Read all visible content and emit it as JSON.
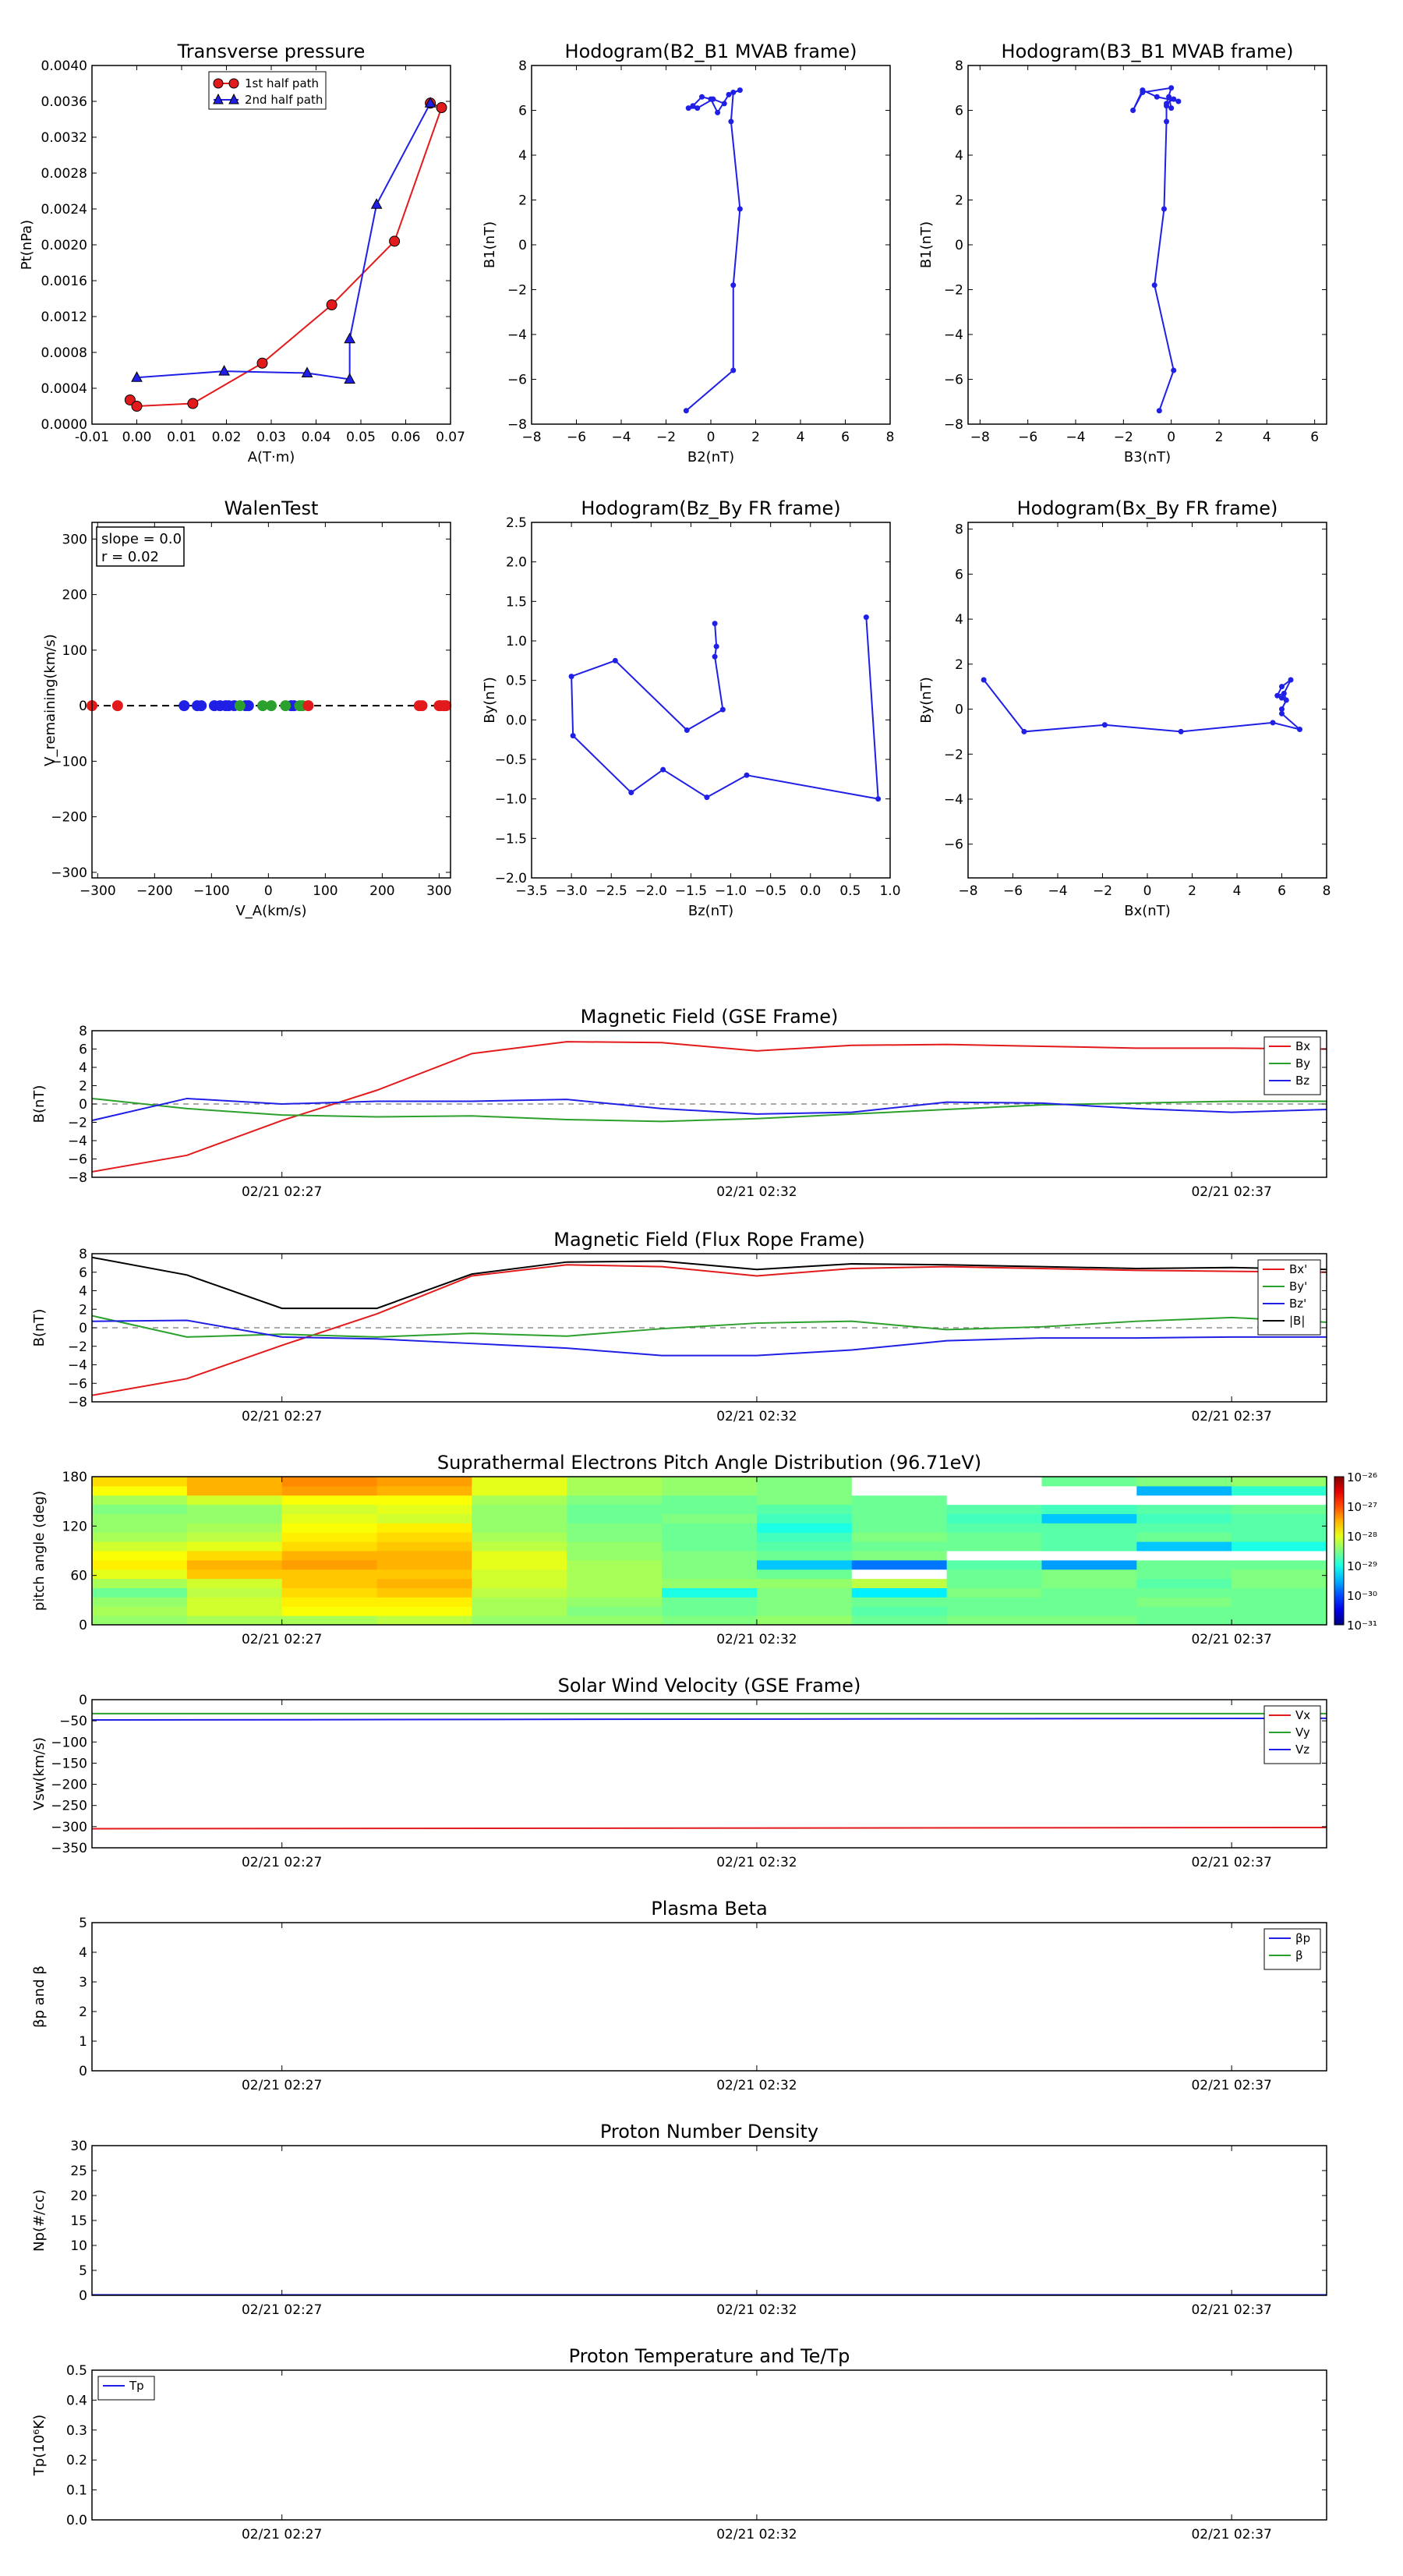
{
  "scatter_panels": [
    {
      "id": "transverse-pressure",
      "title": "Transverse pressure",
      "xlabel": "A(T·m)",
      "ylabel": "Pt(nPa)",
      "xlim": [
        -0.01,
        0.07
      ],
      "ylim": [
        0,
        0.004
      ],
      "xticks": [
        "-0.01",
        "0.00",
        "0.01",
        "0.02",
        "0.03",
        "0.04",
        "0.05",
        "0.06",
        "0.07"
      ],
      "yticks": [
        "0.0000",
        "0.0004",
        "0.0008",
        "0.0012",
        "0.0016",
        "0.0020",
        "0.0024",
        "0.0028",
        "0.0032",
        "0.0036",
        "0.0040"
      ],
      "legend": [
        "1st half path",
        "2nd half path"
      ]
    },
    {
      "id": "hodogram-b2-b1",
      "title": "Hodogram(B2_B1 MVAB frame)",
      "xlabel": "B2(nT)",
      "ylabel": "B1(nT)",
      "xlim": [
        -8,
        8
      ],
      "ylim": [
        -8,
        8
      ],
      "xticks": [
        "−8",
        "−6",
        "−4",
        "−2",
        "0",
        "2",
        "4",
        "6",
        "8"
      ],
      "yticks": [
        "−8",
        "−6",
        "−4",
        "−2",
        "0",
        "2",
        "4",
        "6",
        "8"
      ]
    },
    {
      "id": "hodogram-b3-b1",
      "title": "Hodogram(B3_B1 MVAB frame)",
      "xlabel": "B3(nT)",
      "ylabel": "B1(nT)",
      "xlim": [
        -8.5,
        6.5
      ],
      "ylim": [
        -8,
        8
      ],
      "xticks": [
        "−8",
        "−6",
        "−4",
        "−2",
        "0",
        "2",
        "4",
        "6"
      ],
      "yticks": [
        "−8",
        "−6",
        "−4",
        "−2",
        "0",
        "2",
        "4",
        "6",
        "8"
      ]
    },
    {
      "id": "walen-test",
      "title": "WalenTest",
      "xlabel": "V_A(km/s)",
      "ylabel": "V_remaining(km/s)",
      "xlim": [
        -310,
        320
      ],
      "ylim": [
        -310,
        330
      ],
      "xticks": [
        "−300",
        "−200",
        "−100",
        "0",
        "100",
        "200",
        "300"
      ],
      "yticks": [
        "−300",
        "−200",
        "−100",
        "0",
        "100",
        "200",
        "300"
      ],
      "annotation": [
        "slope = 0.0",
        "r = 0.02"
      ]
    },
    {
      "id": "hodogram-bz-by",
      "title": "Hodogram(Bz_By FR frame)",
      "xlabel": "Bz(nT)",
      "ylabel": "By(nT)",
      "xlim": [
        -3.5,
        1.0
      ],
      "ylim": [
        -2.0,
        2.5
      ],
      "xticks": [
        "−3.5",
        "−3.0",
        "−2.5",
        "−2.0",
        "−1.5",
        "−1.0",
        "−0.5",
        "0.0",
        "0.5",
        "1.0"
      ],
      "yticks": [
        "−2.0",
        "−1.5",
        "−1.0",
        "−0.5",
        "0.0",
        "0.5",
        "1.0",
        "1.5",
        "2.0",
        "2.5"
      ]
    },
    {
      "id": "hodogram-bx-by",
      "title": "Hodogram(Bx_By FR frame)",
      "xlabel": "Bx(nT)",
      "ylabel": "By(nT)",
      "xlim": [
        -8,
        8
      ],
      "ylim": [
        -7.5,
        8.3
      ],
      "xticks": [
        "−8",
        "−6",
        "−4",
        "−2",
        "0",
        "2",
        "4",
        "6",
        "8"
      ],
      "yticks": [
        "−6",
        "−4",
        "−2",
        "0",
        "2",
        "4",
        "6",
        "8"
      ]
    }
  ],
  "time_panels": [
    {
      "id": "mag-gse",
      "title": "Magnetic Field (GSE Frame)",
      "ylabel": "B(nT)",
      "ylim": [
        -8,
        8
      ],
      "yticks": [
        "−8",
        "−6",
        "−4",
        "−2",
        "0",
        "2",
        "4",
        "6",
        "8"
      ],
      "legend": [
        "Bx",
        "By",
        "Bz"
      ]
    },
    {
      "id": "mag-fr",
      "title": "Magnetic Field (Flux Rope Frame)",
      "ylabel": "B(nT)",
      "ylim": [
        -8,
        8
      ],
      "yticks": [
        "−8",
        "−6",
        "−4",
        "−2",
        "0",
        "2",
        "4",
        "6",
        "8"
      ],
      "legend": [
        "Bx'",
        "By'",
        "Bz'",
        "|B|"
      ]
    },
    {
      "id": "pad",
      "title": "Suprathermal Electrons Pitch Angle Distribution (96.71eV)",
      "ylabel": "pitch angle (deg)",
      "ylim": [
        0,
        180
      ],
      "yticks": [
        "0",
        "60",
        "120",
        "180"
      ],
      "colorbar_ticks": [
        "10⁻²⁶",
        "10⁻²⁷",
        "10⁻²⁸",
        "10⁻²⁹",
        "10⁻³⁰",
        "10⁻³¹"
      ]
    },
    {
      "id": "vsw",
      "title": "Solar Wind Velocity (GSE Frame)",
      "ylabel": "Vsw(km/s)",
      "ylim": [
        -350,
        0
      ],
      "yticks": [
        "−350",
        "−300",
        "−250",
        "−200",
        "−150",
        "−100",
        "−50",
        "0"
      ],
      "legend": [
        "Vx",
        "Vy",
        "Vz"
      ]
    },
    {
      "id": "beta",
      "title": "Plasma Beta",
      "ylabel": "βp and β",
      "ylim": [
        0,
        5
      ],
      "yticks": [
        "0",
        "1",
        "2",
        "3",
        "4",
        "5"
      ],
      "legend": [
        "βp",
        "β"
      ]
    },
    {
      "id": "np",
      "title": "Proton Number Density",
      "ylabel": "Np(#/cc)",
      "ylim": [
        0,
        30
      ],
      "yticks": [
        "0",
        "5",
        "10",
        "15",
        "20",
        "25",
        "30"
      ]
    },
    {
      "id": "tp",
      "title": "Proton Temperature and Te/Tp",
      "ylabel": "Tp(10⁶K)",
      "ylim": [
        0,
        0.5
      ],
      "yticks": [
        "0.0",
        "0.1",
        "0.2",
        "0.3",
        "0.4",
        "0.5"
      ],
      "legend": [
        "Tp"
      ]
    }
  ],
  "time_axis": {
    "xlim": [
      0,
      13
    ],
    "ticks": [
      {
        "t": 2,
        "label": "02/21 02:27"
      },
      {
        "t": 7,
        "label": "02/21 02:32"
      },
      {
        "t": 12,
        "label": "02/21 02:37"
      }
    ]
  },
  "colors": {
    "red": "#e31a1c",
    "green": "#2ca02c",
    "blue": "#1f1fe6",
    "black": "#000000",
    "gray": "#777777"
  },
  "chart_data": [
    {
      "type": "line",
      "panel": "transverse-pressure",
      "series": [
        {
          "name": "1st half path",
          "x": [
            -0.0015,
            0.0,
            0.0125,
            0.028,
            0.0435,
            0.0575,
            0.068,
            0.0655
          ],
          "y": [
            0.00027,
            0.0002,
            0.00023,
            0.00068,
            0.00133,
            0.00204,
            0.00353,
            0.00358
          ]
        },
        {
          "name": "2nd half path",
          "x": [
            0.0655,
            0.0535,
            0.0475,
            0.0475,
            0.038,
            0.0195,
            0.0
          ],
          "y": [
            0.00358,
            0.00245,
            0.00095,
            0.0005,
            0.00057,
            0.00059,
            0.00052
          ]
        }
      ]
    },
    {
      "type": "line",
      "panel": "hodogram-b2-b1",
      "series": [
        {
          "x": [
            -1.1,
            1.0,
            1.0,
            1.3,
            0.9,
            1.0,
            1.3,
            0.8,
            0.3,
            0.0,
            -0.4,
            -0.8,
            -1.0,
            -0.6,
            0.1,
            0.6
          ],
          "y": [
            -7.4,
            -5.6,
            -1.8,
            1.6,
            5.5,
            6.8,
            6.9,
            6.7,
            5.9,
            6.5,
            6.6,
            6.2,
            6.1,
            6.1,
            6.5,
            6.3
          ]
        }
      ]
    },
    {
      "type": "line",
      "panel": "hodogram-b3-b1",
      "series": [
        {
          "x": [
            -0.5,
            0.1,
            -0.7,
            -0.3,
            -0.2,
            -0.2,
            0.0,
            -0.1,
            0.3,
            -0.6,
            -1.2,
            -1.6,
            -1.2,
            0.0,
            -0.2,
            0.1
          ],
          "y": [
            -7.4,
            -5.6,
            -1.8,
            1.6,
            5.5,
            6.2,
            6.1,
            6.6,
            6.4,
            6.6,
            6.9,
            6.0,
            6.8,
            7.0,
            6.3,
            6.5
          ]
        }
      ]
    },
    {
      "type": "scatter",
      "panel": "walen-test",
      "fit_line": {
        "x": [
          -310,
          320
        ],
        "y": [
          0,
          0
        ]
      },
      "series": [
        {
          "name": "red",
          "x": [
            -310,
            -265,
            265,
            270,
            300,
            303,
            308,
            312
          ],
          "y": [
            0,
            0,
            0,
            0,
            0,
            0,
            0,
            0
          ]
        },
        {
          "name": "blue",
          "x": [
            -148,
            -125,
            -118,
            -95,
            -85,
            -75,
            -70,
            -60,
            -40,
            -35,
            40,
            45
          ],
          "y": [
            0,
            0,
            0,
            0,
            0,
            0,
            0,
            0,
            0,
            0,
            0,
            0
          ]
        },
        {
          "name": "green",
          "x": [
            -50,
            -10,
            5,
            30,
            55,
            60
          ],
          "y": [
            0,
            0,
            0,
            0,
            0,
            0
          ]
        },
        {
          "name": "red2",
          "x": [
            70
          ],
          "y": [
            0
          ]
        }
      ]
    },
    {
      "type": "line",
      "panel": "hodogram-bz-by",
      "series": [
        {
          "x": [
            -1.2,
            -1.18,
            -1.2,
            -1.1,
            -1.55,
            -2.45,
            -3.0,
            -2.98,
            -2.25,
            -1.85,
            -1.3,
            -0.8,
            0.85,
            0.7
          ],
          "y": [
            1.22,
            0.93,
            0.8,
            0.13,
            -0.13,
            0.75,
            0.55,
            -0.2,
            -0.92,
            -0.63,
            -0.98,
            -0.7,
            -1.0,
            1.3
          ]
        }
      ]
    },
    {
      "type": "line",
      "panel": "hodogram-bx-by",
      "series": [
        {
          "x": [
            -7.3,
            -5.5,
            -1.9,
            1.5,
            5.6,
            6.8,
            6.0,
            6.0,
            6.2,
            6.1,
            5.8,
            6.0,
            6.4,
            6.0
          ],
          "y": [
            1.3,
            -1.0,
            -0.7,
            -1.0,
            -0.6,
            -0.9,
            -0.2,
            0.0,
            0.4,
            0.7,
            0.6,
            1.0,
            1.3,
            0.5
          ]
        }
      ]
    },
    {
      "type": "line",
      "panel": "mag-gse",
      "x": [
        0,
        1,
        2,
        3,
        4,
        5,
        6,
        7,
        8,
        9,
        10,
        11,
        12,
        13
      ],
      "series": [
        {
          "name": "Bx",
          "values": [
            -7.4,
            -5.6,
            -1.8,
            1.5,
            5.5,
            6.8,
            6.7,
            5.8,
            6.4,
            6.5,
            6.3,
            6.1,
            6.1,
            6.0
          ]
        },
        {
          "name": "By",
          "values": [
            0.6,
            -0.5,
            -1.2,
            -1.4,
            -1.3,
            -1.7,
            -1.9,
            -1.6,
            -1.1,
            -0.6,
            -0.1,
            0.1,
            0.3,
            0.3
          ]
        },
        {
          "name": "Bz",
          "values": [
            -1.8,
            0.6,
            0.0,
            0.3,
            0.3,
            0.5,
            -0.5,
            -1.1,
            -0.9,
            0.2,
            0.1,
            -0.5,
            -0.9,
            -0.6
          ]
        }
      ],
      "reference_line": 0
    },
    {
      "type": "line",
      "panel": "mag-fr",
      "x": [
        0,
        1,
        2,
        3,
        4,
        5,
        6,
        7,
        8,
        9,
        10,
        11,
        12,
        13
      ],
      "series": [
        {
          "name": "Bx'",
          "values": [
            -7.3,
            -5.5,
            -1.9,
            1.5,
            5.6,
            6.8,
            6.6,
            5.6,
            6.4,
            6.6,
            6.4,
            6.2,
            6.1,
            6.0
          ]
        },
        {
          "name": "By'",
          "values": [
            1.3,
            -1.0,
            -0.7,
            -1.0,
            -0.6,
            -0.9,
            -0.1,
            0.5,
            0.7,
            -0.2,
            0.1,
            0.7,
            1.1,
            0.6
          ]
        },
        {
          "name": "Bz'",
          "values": [
            0.7,
            0.8,
            -1.0,
            -1.2,
            -1.7,
            -2.2,
            -3.0,
            -3.0,
            -2.4,
            -1.4,
            -1.1,
            -1.1,
            -1.0,
            -1.0
          ]
        },
        {
          "name": "|B|",
          "values": [
            7.6,
            5.7,
            2.1,
            2.1,
            5.8,
            7.1,
            7.2,
            6.3,
            6.9,
            6.8,
            6.6,
            6.4,
            6.5,
            6.3
          ]
        }
      ],
      "reference_line": 0
    },
    {
      "type": "heatmap",
      "panel": "pad",
      "columns": 13,
      "rows": 16,
      "log_values_description": "log10 of flux",
      "values": [
        [
          -28.4,
          -28.3,
          -28.3,
          -28.2,
          -28.4,
          -28.4,
          -28.5,
          -28.4,
          -28.6,
          -28.5,
          -28.5,
          -28.6,
          -28.6
        ],
        [
          -28.3,
          -28.1,
          -27.9,
          -27.9,
          -28.3,
          -28.5,
          -28.6,
          -28.5,
          -28.7,
          -28.6,
          -28.6,
          -28.6,
          -28.6
        ],
        [
          -28.4,
          -28.1,
          -27.8,
          -27.8,
          -28.3,
          -28.4,
          -28.6,
          -28.5,
          -28.6,
          -28.6,
          -28.6,
          -28.5,
          -28.6
        ],
        [
          -28.6,
          -28.2,
          -27.7,
          -27.6,
          -28.2,
          -28.3,
          -29.0,
          -28.5,
          -29.2,
          -28.5,
          -28.6,
          -28.6,
          -28.6
        ],
        [
          -28.3,
          -28.1,
          -27.6,
          -27.5,
          -28.1,
          -28.3,
          -28.4,
          -28.4,
          -28.2,
          -28.6,
          -28.5,
          -28.7,
          -28.5
        ],
        [
          -28.0,
          -27.6,
          -27.6,
          -27.6,
          -28.1,
          -28.3,
          -28.5,
          -28.6,
          -99,
          -28.6,
          -28.5,
          -28.6,
          -28.5
        ],
        [
          -27.8,
          -27.5,
          -27.4,
          -27.5,
          -28.0,
          -28.3,
          -28.5,
          -29.4,
          -29.8,
          -28.7,
          -29.6,
          -28.6,
          -28.6
        ],
        [
          -27.9,
          -27.7,
          -27.5,
          -27.5,
          -28.0,
          -28.4,
          -28.5,
          -28.6,
          -28.5,
          -99,
          -99,
          -99,
          -99
        ],
        [
          -28.1,
          -28.0,
          -27.7,
          -27.6,
          -28.2,
          -28.4,
          -28.6,
          -28.7,
          -28.6,
          -28.6,
          -28.7,
          -29.4,
          -29.0
        ],
        [
          -28.3,
          -28.2,
          -27.8,
          -27.7,
          -28.3,
          -28.5,
          -28.6,
          -28.8,
          -28.5,
          -28.6,
          -28.7,
          -28.6,
          -28.7
        ],
        [
          -28.4,
          -28.3,
          -27.9,
          -27.8,
          -28.4,
          -28.5,
          -28.6,
          -29.0,
          -28.6,
          -28.7,
          -28.7,
          -28.7,
          -28.7
        ],
        [
          -28.4,
          -28.4,
          -28.0,
          -28.1,
          -28.4,
          -28.6,
          -28.5,
          -28.8,
          -28.6,
          -28.8,
          -29.4,
          -28.8,
          -28.7
        ],
        [
          -28.5,
          -28.4,
          -28.1,
          -28.0,
          -28.4,
          -28.6,
          -28.6,
          -28.7,
          -28.6,
          -28.7,
          -28.8,
          -28.7,
          -28.6
        ],
        [
          -28.3,
          -28.1,
          -27.9,
          -27.9,
          -28.3,
          -28.5,
          -28.6,
          -28.5,
          -28.6,
          -99,
          -99,
          -99,
          -99
        ],
        [
          -27.9,
          -27.5,
          -27.4,
          -27.5,
          -28.0,
          -28.3,
          -28.4,
          -28.5,
          -99,
          -99,
          -99,
          -29.5,
          -28.9
        ],
        [
          -27.7,
          -27.5,
          -27.3,
          -27.4,
          -28.0,
          -28.3,
          -28.4,
          -28.5,
          -99,
          -99,
          -28.6,
          -28.5,
          -28.4
        ]
      ]
    },
    {
      "type": "line",
      "panel": "vsw",
      "x": [
        0,
        13
      ],
      "series": [
        {
          "name": "Vx",
          "values": [
            -305,
            -302
          ]
        },
        {
          "name": "Vy",
          "values": [
            -33,
            -33
          ]
        },
        {
          "name": "Vz",
          "values": [
            -48,
            -44
          ]
        }
      ]
    },
    {
      "type": "line",
      "panel": "np",
      "x": [
        0,
        13
      ],
      "series": [
        {
          "name": "Np",
          "values": [
            0.1,
            0.1
          ]
        }
      ]
    }
  ]
}
